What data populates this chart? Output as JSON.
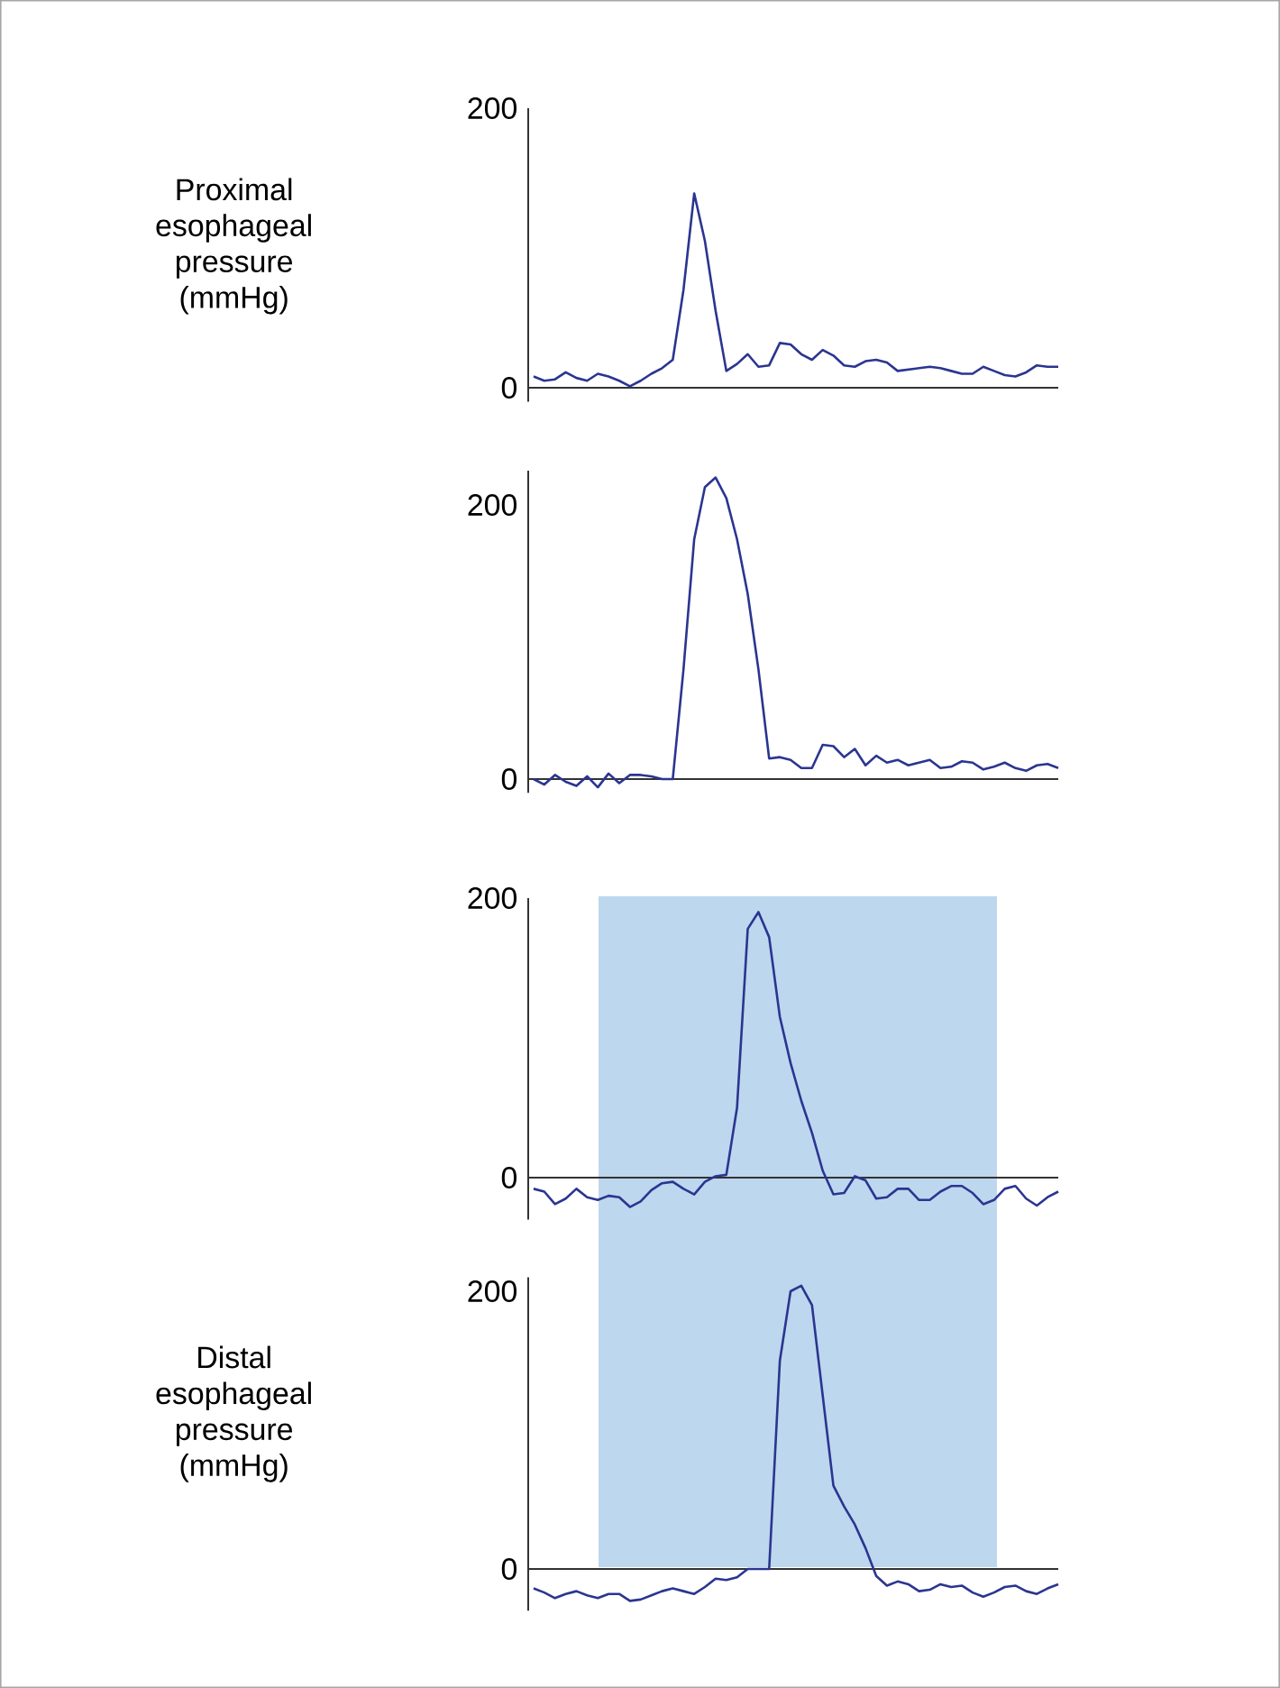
{
  "chart_data": [
    {
      "type": "line",
      "ylabel": "Proximal esophageal pressure (mmHg)",
      "categories": [
        null,
        null,
        null,
        null,
        null,
        null,
        null,
        null,
        null,
        null,
        null,
        null,
        null,
        null,
        null,
        null,
        null,
        null,
        null,
        null,
        null,
        null,
        null,
        null,
        null,
        null,
        null,
        null,
        null,
        null,
        null,
        null,
        null,
        null,
        null,
        null,
        null,
        null,
        null,
        null,
        null,
        null,
        null,
        null,
        null,
        null,
        null,
        null,
        null,
        null
      ],
      "ylim": [
        -10,
        200
      ],
      "yticks": [
        0,
        200
      ],
      "tick_labels": "y",
      "series": [
        {
          "color": "#2b3590",
          "values": [
            8,
            5,
            6,
            11,
            7,
            5,
            10,
            8,
            5,
            1,
            5,
            10,
            14,
            20,
            70,
            139,
            105,
            55,
            12,
            17,
            24,
            15,
            16,
            32,
            31,
            24,
            20,
            27,
            23,
            16,
            15,
            19,
            20,
            18,
            12,
            13,
            14,
            15,
            14,
            12,
            10,
            10,
            15,
            12,
            9,
            8,
            11,
            16,
            15,
            15
          ]
        }
      ]
    },
    {
      "type": "line",
      "categories": [
        null,
        null,
        null,
        null,
        null,
        null,
        null,
        null,
        null,
        null,
        null,
        null,
        null,
        null,
        null,
        null,
        null,
        null,
        null,
        null,
        null,
        null,
        null,
        null,
        null,
        null,
        null,
        null,
        null,
        null,
        null,
        null,
        null,
        null,
        null,
        null,
        null,
        null,
        null,
        null,
        null,
        null,
        null,
        null,
        null,
        null,
        null,
        null,
        null,
        null
      ],
      "ylim": [
        -10,
        225
      ],
      "yticks": [
        0,
        200
      ],
      "tick_labels": "y",
      "series": [
        {
          "color": "#2b3590",
          "values": [
            0,
            -4,
            3,
            -2,
            -5,
            2,
            -6,
            4,
            -3,
            3,
            3,
            2,
            0,
            0,
            80,
            175,
            213,
            220,
            205,
            175,
            135,
            80,
            15,
            16,
            14,
            8,
            8,
            25,
            24,
            16,
            22,
            10,
            17,
            12,
            14,
            10,
            12,
            14,
            8,
            9,
            13,
            12,
            7,
            9,
            12,
            8,
            6,
            10,
            11,
            8
          ]
        }
      ]
    },
    {
      "type": "line",
      "categories": [
        null,
        null,
        null,
        null,
        null,
        null,
        null,
        null,
        null,
        null,
        null,
        null,
        null,
        null,
        null,
        null,
        null,
        null,
        null,
        null,
        null,
        null,
        null,
        null,
        null,
        null,
        null,
        null,
        null,
        null,
        null,
        null,
        null,
        null,
        null,
        null,
        null,
        null,
        null,
        null,
        null,
        null,
        null,
        null,
        null,
        null,
        null,
        null,
        null,
        null
      ],
      "ylim": [
        -30,
        200
      ],
      "yticks": [
        0,
        200
      ],
      "tick_labels": "y",
      "series": [
        {
          "color": "#2b3590",
          "values": [
            -8,
            -10,
            -19,
            -15,
            -8,
            -14,
            -16,
            -13,
            -14,
            -21,
            -17,
            -9,
            -4,
            -3,
            -8,
            -12,
            -3,
            1,
            2,
            50,
            178,
            190,
            172,
            115,
            82,
            55,
            32,
            5,
            -12,
            -11,
            1,
            -2,
            -15,
            -14,
            -8,
            -8,
            -16,
            -16,
            -10,
            -6,
            -6,
            -11,
            -19,
            -16,
            -8,
            -6,
            -15,
            -20,
            -14,
            -10
          ]
        }
      ]
    },
    {
      "type": "line",
      "ylabel": "Distal esophageal pressure (mmHg)",
      "categories": [
        null,
        null,
        null,
        null,
        null,
        null,
        null,
        null,
        null,
        null,
        null,
        null,
        null,
        null,
        null,
        null,
        null,
        null,
        null,
        null,
        null,
        null,
        null,
        null,
        null,
        null,
        null,
        null,
        null,
        null,
        null,
        null,
        null,
        null,
        null,
        null,
        null,
        null,
        null,
        null,
        null,
        null,
        null,
        null,
        null,
        null,
        null,
        null,
        null,
        null
      ],
      "ylim": [
        -30,
        210
      ],
      "yticks": [
        0,
        200
      ],
      "tick_labels": "y",
      "series": [
        {
          "color": "#2b3590",
          "values": [
            -14,
            -17,
            -21,
            -18,
            -16,
            -19,
            -21,
            -18,
            -18,
            -23,
            -22,
            -19,
            -16,
            -14,
            -16,
            -18,
            -13,
            -7,
            -8,
            -6,
            0,
            0,
            0,
            150,
            200,
            204,
            190,
            125,
            60,
            45,
            32,
            15,
            -5,
            -12,
            -9,
            -11,
            -16,
            -15,
            -11,
            -13,
            -12,
            -17,
            -20,
            -17,
            -13,
            -12,
            -16,
            -18,
            -14,
            -11
          ]
        }
      ]
    }
  ]
}
